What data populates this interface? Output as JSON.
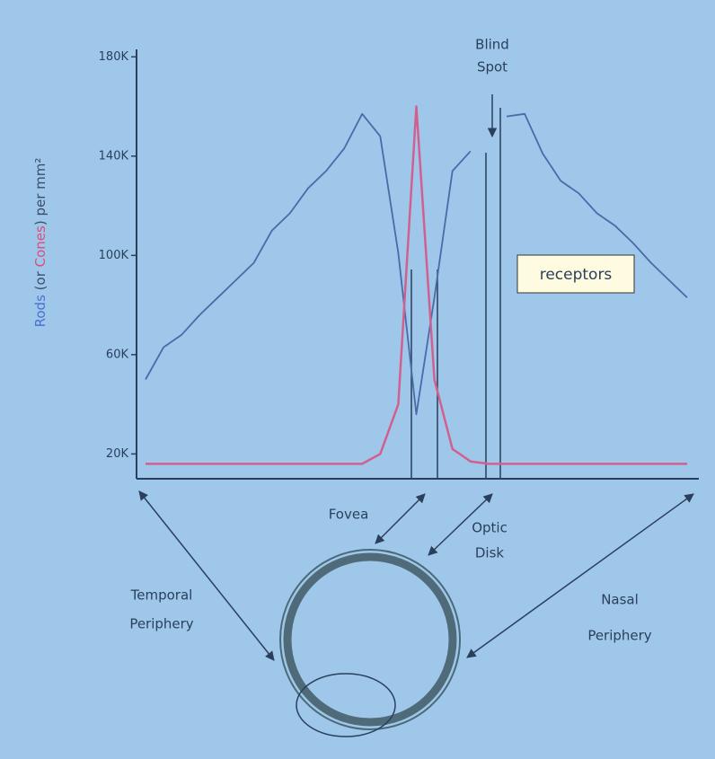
{
  "chart_data": {
    "type": "line",
    "y_label_parts": [
      {
        "text": "Rods",
        "color": "#4f6fd0"
      },
      {
        "text": " (or ",
        "color": "#3a4f6c"
      },
      {
        "text": "Cones",
        "color": "#d94f7f"
      },
      {
        "text": ") per mm²",
        "color": "#3a4f6c"
      }
    ],
    "categories": [
      null,
      null,
      null,
      null,
      null,
      null,
      null,
      null,
      null,
      null,
      null,
      null,
      null,
      null,
      null,
      null,
      null,
      null,
      null,
      null,
      null,
      null,
      null,
      null,
      null,
      null,
      null,
      null,
      null,
      null,
      null
    ],
    "series": [
      {
        "name": "Rods",
        "color": "#4a6aa8",
        "values": [
          50000,
          63000,
          68000,
          76000,
          83000,
          90000,
          97000,
          110000,
          117000,
          127000,
          134000,
          143000,
          157000,
          148000,
          101000,
          36000,
          83000,
          134000,
          142000,
          null,
          156000,
          157000,
          141000,
          130000,
          125000,
          117000,
          112000,
          105000,
          97000,
          90000,
          83000
        ]
      },
      {
        "name": "Cones",
        "color": "#d2608f",
        "values": [
          16000,
          16000,
          16000,
          16000,
          16000,
          16000,
          16000,
          16000,
          16000,
          16000,
          16000,
          16000,
          16000,
          20000,
          40000,
          160000,
          50000,
          22000,
          17000,
          16000,
          16000,
          16000,
          16000,
          16000,
          16000,
          16000,
          16000,
          16000,
          16000,
          16000,
          16000
        ]
      }
    ],
    "ylim": [
      10000,
      183000
    ],
    "yticks": [
      {
        "value": 180000,
        "label": "180K"
      },
      {
        "value": 140000,
        "label": "140K"
      },
      {
        "value": 100000,
        "label": "100K"
      },
      {
        "value": 60000,
        "label": "60K"
      },
      {
        "value": 20000,
        "label": "20K"
      }
    ],
    "annotations": {
      "blind_spot": [
        "Blind",
        "Spot"
      ],
      "receptors": "receptors",
      "fovea": "Fovea",
      "optic_disk": [
        "Optic",
        "Disk"
      ],
      "temporal": [
        "Temporal",
        "Periphery"
      ],
      "nasal": [
        "Nasal",
        "Periphery"
      ]
    }
  }
}
